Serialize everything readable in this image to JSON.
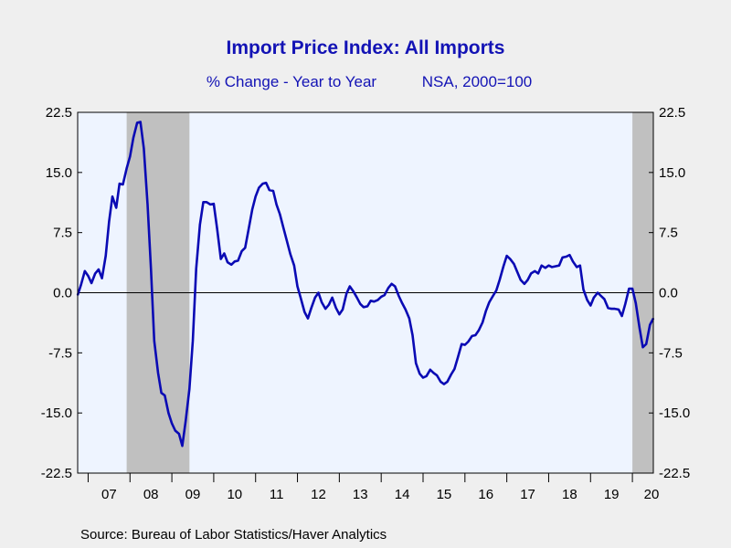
{
  "chart_data": {
    "type": "line",
    "title": "Import Price Index: All Imports",
    "subtitle": "% Change - Year to Year",
    "subtitle_note": "NSA, 2000=100",
    "source": "Source:  Bureau of Labor Statistics/Haver Analytics",
    "ylim": [
      -22.5,
      22.5
    ],
    "yticks": [
      22.5,
      15.0,
      7.5,
      0.0,
      -7.5,
      -15.0,
      -22.5
    ],
    "ytick_labels": [
      "22.5",
      "15.0",
      "7.5",
      "0.0",
      "-7.5",
      "-15.0",
      "-22.5"
    ],
    "xlim": [
      2006.75,
      2020.5
    ],
    "x_categories": [
      "07",
      "08",
      "09",
      "10",
      "11",
      "12",
      "13",
      "14",
      "15",
      "16",
      "17",
      "18",
      "19",
      "20"
    ],
    "recessions": [
      [
        2007.92,
        2009.42
      ],
      [
        2020.0,
        2020.5
      ]
    ],
    "grid": false,
    "zero_line": true,
    "line_color": "#0a0ab4",
    "recession_color": "#c0c0c0",
    "plot_bg": "#eef4ff",
    "series": [
      {
        "values": [
          [
            2006.75,
            -0.3
          ],
          [
            2006.83,
            1.0
          ],
          [
            2006.92,
            2.7
          ],
          [
            2007.0,
            2.1
          ],
          [
            2007.08,
            1.2
          ],
          [
            2007.17,
            2.4
          ],
          [
            2007.25,
            2.9
          ],
          [
            2007.33,
            1.8
          ],
          [
            2007.42,
            4.6
          ],
          [
            2007.5,
            8.9
          ],
          [
            2007.58,
            12.0
          ],
          [
            2007.67,
            10.6
          ],
          [
            2007.75,
            13.6
          ],
          [
            2007.83,
            13.5
          ],
          [
            2007.92,
            15.5
          ],
          [
            2008.0,
            17.0
          ],
          [
            2008.08,
            19.3
          ],
          [
            2008.17,
            21.2
          ],
          [
            2008.25,
            21.3
          ],
          [
            2008.33,
            18.0
          ],
          [
            2008.42,
            11.0
          ],
          [
            2008.5,
            3.0
          ],
          [
            2008.58,
            -6.0
          ],
          [
            2008.67,
            -10.0
          ],
          [
            2008.75,
            -12.5
          ],
          [
            2008.83,
            -12.8
          ],
          [
            2008.92,
            -15.0
          ],
          [
            2009.0,
            -16.3
          ],
          [
            2009.08,
            -17.2
          ],
          [
            2009.17,
            -17.6
          ],
          [
            2009.25,
            -19.1
          ],
          [
            2009.33,
            -16.0
          ],
          [
            2009.42,
            -12.0
          ],
          [
            2009.5,
            -6.0
          ],
          [
            2009.58,
            3.0
          ],
          [
            2009.67,
            8.5
          ],
          [
            2009.75,
            11.3
          ],
          [
            2009.83,
            11.3
          ],
          [
            2009.92,
            11.0
          ],
          [
            2010.0,
            11.1
          ],
          [
            2010.08,
            8.0
          ],
          [
            2010.17,
            4.2
          ],
          [
            2010.25,
            4.9
          ],
          [
            2010.33,
            3.8
          ],
          [
            2010.42,
            3.5
          ],
          [
            2010.5,
            3.9
          ],
          [
            2010.58,
            4.0
          ],
          [
            2010.67,
            5.2
          ],
          [
            2010.75,
            5.6
          ],
          [
            2010.83,
            7.8
          ],
          [
            2010.92,
            10.4
          ],
          [
            2011.0,
            12.0
          ],
          [
            2011.08,
            13.1
          ],
          [
            2011.17,
            13.6
          ],
          [
            2011.25,
            13.7
          ],
          [
            2011.33,
            12.8
          ],
          [
            2011.42,
            12.7
          ],
          [
            2011.5,
            11.0
          ],
          [
            2011.58,
            9.8
          ],
          [
            2011.67,
            8.0
          ],
          [
            2011.75,
            6.4
          ],
          [
            2011.83,
            4.8
          ],
          [
            2011.92,
            3.4
          ],
          [
            2012.0,
            0.8
          ],
          [
            2012.08,
            -0.7
          ],
          [
            2012.17,
            -2.4
          ],
          [
            2012.25,
            -3.2
          ],
          [
            2012.33,
            -1.9
          ],
          [
            2012.42,
            -0.6
          ],
          [
            2012.5,
            0.0
          ],
          [
            2012.58,
            -1.2
          ],
          [
            2012.67,
            -2.0
          ],
          [
            2012.75,
            -1.5
          ],
          [
            2012.83,
            -0.6
          ],
          [
            2012.92,
            -1.9
          ],
          [
            2013.0,
            -2.7
          ],
          [
            2013.08,
            -2.1
          ],
          [
            2013.17,
            -0.1
          ],
          [
            2013.25,
            0.8
          ],
          [
            2013.33,
            0.2
          ],
          [
            2013.42,
            -0.6
          ],
          [
            2013.5,
            -1.4
          ],
          [
            2013.58,
            -1.8
          ],
          [
            2013.67,
            -1.7
          ],
          [
            2013.75,
            -1.0
          ],
          [
            2013.83,
            -1.1
          ],
          [
            2013.92,
            -0.9
          ],
          [
            2014.0,
            -0.5
          ],
          [
            2014.08,
            -0.3
          ],
          [
            2014.17,
            0.6
          ],
          [
            2014.25,
            1.1
          ],
          [
            2014.33,
            0.8
          ],
          [
            2014.42,
            -0.4
          ],
          [
            2014.5,
            -1.3
          ],
          [
            2014.58,
            -2.1
          ],
          [
            2014.67,
            -3.2
          ],
          [
            2014.75,
            -5.3
          ],
          [
            2014.83,
            -8.8
          ],
          [
            2014.92,
            -10.1
          ],
          [
            2015.0,
            -10.6
          ],
          [
            2015.08,
            -10.4
          ],
          [
            2015.17,
            -9.6
          ],
          [
            2015.25,
            -10.0
          ],
          [
            2015.33,
            -10.3
          ],
          [
            2015.42,
            -11.1
          ],
          [
            2015.5,
            -11.4
          ],
          [
            2015.58,
            -11.1
          ],
          [
            2015.67,
            -10.2
          ],
          [
            2015.75,
            -9.5
          ],
          [
            2015.83,
            -8.1
          ],
          [
            2015.92,
            -6.4
          ],
          [
            2016.0,
            -6.5
          ],
          [
            2016.08,
            -6.1
          ],
          [
            2016.17,
            -5.4
          ],
          [
            2016.25,
            -5.3
          ],
          [
            2016.33,
            -4.7
          ],
          [
            2016.42,
            -3.7
          ],
          [
            2016.5,
            -2.3
          ],
          [
            2016.58,
            -1.2
          ],
          [
            2016.67,
            -0.4
          ],
          [
            2016.75,
            0.3
          ],
          [
            2016.83,
            1.6
          ],
          [
            2016.92,
            3.3
          ],
          [
            2017.0,
            4.6
          ],
          [
            2017.08,
            4.2
          ],
          [
            2017.17,
            3.6
          ],
          [
            2017.25,
            2.6
          ],
          [
            2017.33,
            1.6
          ],
          [
            2017.42,
            1.1
          ],
          [
            2017.5,
            1.6
          ],
          [
            2017.58,
            2.4
          ],
          [
            2017.67,
            2.7
          ],
          [
            2017.75,
            2.4
          ],
          [
            2017.83,
            3.4
          ],
          [
            2017.92,
            3.1
          ],
          [
            2018.0,
            3.4
          ],
          [
            2018.08,
            3.2
          ],
          [
            2018.17,
            3.3
          ],
          [
            2018.25,
            3.4
          ],
          [
            2018.33,
            4.4
          ],
          [
            2018.42,
            4.5
          ],
          [
            2018.5,
            4.7
          ],
          [
            2018.58,
            3.9
          ],
          [
            2018.67,
            3.2
          ],
          [
            2018.75,
            3.4
          ],
          [
            2018.83,
            0.4
          ],
          [
            2018.92,
            -0.9
          ],
          [
            2019.0,
            -1.6
          ],
          [
            2019.08,
            -0.6
          ],
          [
            2019.17,
            0.0
          ],
          [
            2019.25,
            -0.4
          ],
          [
            2019.33,
            -0.8
          ],
          [
            2019.42,
            -1.9
          ],
          [
            2019.5,
            -2.0
          ],
          [
            2019.58,
            -2.0
          ],
          [
            2019.67,
            -2.1
          ],
          [
            2019.75,
            -2.9
          ],
          [
            2019.83,
            -1.4
          ],
          [
            2019.92,
            0.5
          ],
          [
            2020.0,
            0.5
          ],
          [
            2020.08,
            -1.3
          ],
          [
            2020.17,
            -4.4
          ],
          [
            2020.25,
            -6.8
          ],
          [
            2020.33,
            -6.4
          ],
          [
            2020.42,
            -4.0
          ],
          [
            2020.5,
            -3.2
          ]
        ]
      }
    ]
  }
}
